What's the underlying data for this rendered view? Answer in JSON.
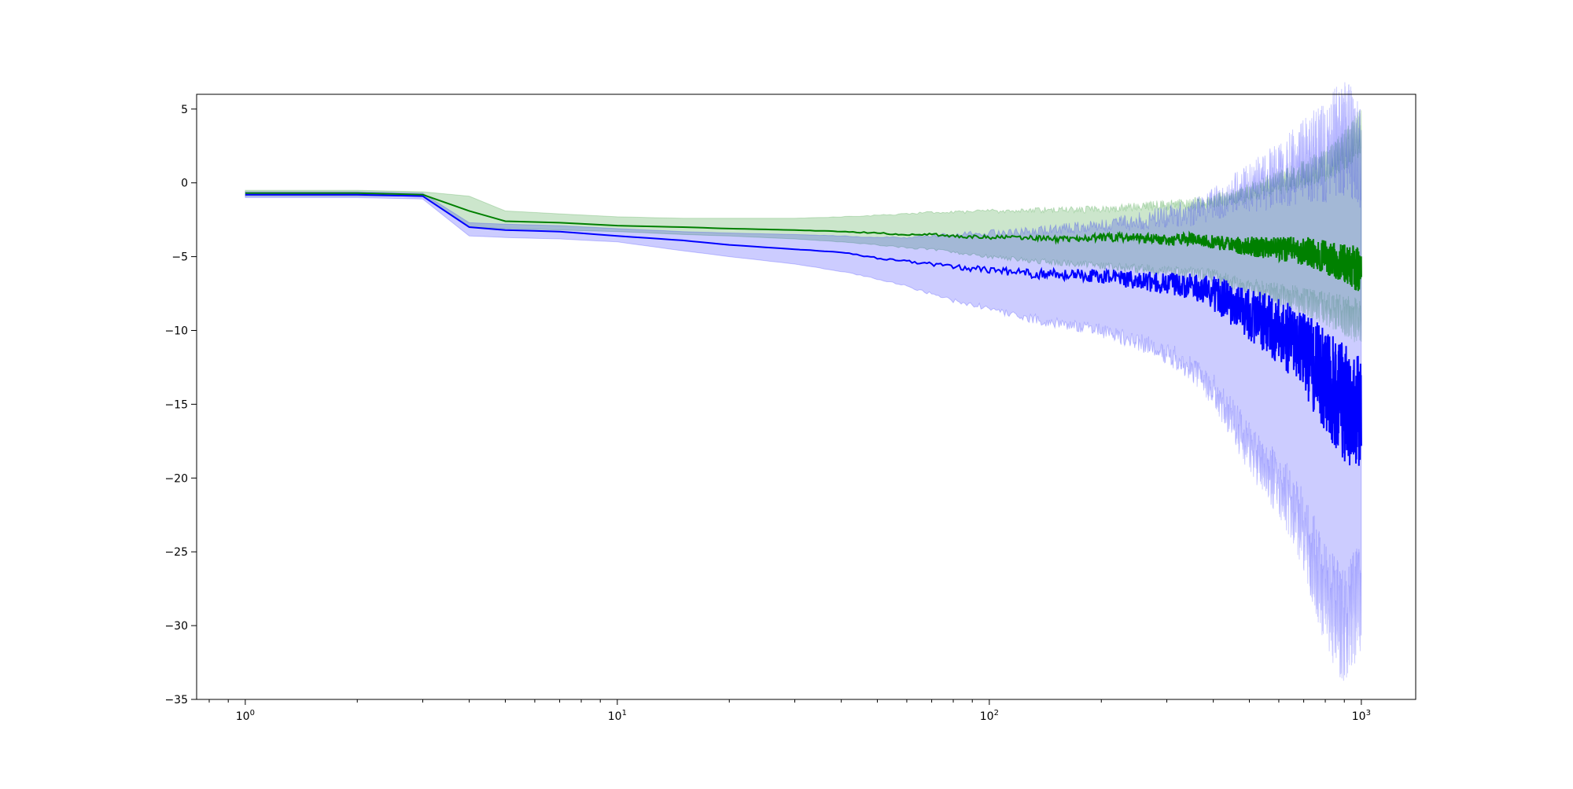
{
  "chart_data": {
    "type": "line",
    "title": "",
    "xlabel": "",
    "ylabel": "",
    "xscale": "log",
    "xlim": [
      0.74,
      1400
    ],
    "ylim": [
      -35,
      6
    ],
    "grid": false,
    "legend": "none",
    "x_major_ticks": [
      {
        "value": 1,
        "base": "10",
        "exp": "0"
      },
      {
        "value": 10,
        "base": "10",
        "exp": "1"
      },
      {
        "value": 100,
        "base": "10",
        "exp": "2"
      },
      {
        "value": 1000,
        "base": "10",
        "exp": "3"
      }
    ],
    "y_ticks": [
      {
        "value": 5,
        "label": "5"
      },
      {
        "value": 0,
        "label": "0"
      },
      {
        "value": -5,
        "label": "−5"
      },
      {
        "value": -10,
        "label": "−10"
      },
      {
        "value": -15,
        "label": "−15"
      },
      {
        "value": -20,
        "label": "−20"
      },
      {
        "value": -25,
        "label": "−25"
      },
      {
        "value": -30,
        "label": "−30"
      },
      {
        "value": -35,
        "label": "−35"
      }
    ],
    "series": [
      {
        "color": "#008000",
        "band_color": "#008000",
        "x": [
          1,
          2,
          3,
          4,
          5,
          7,
          10,
          15,
          20,
          30,
          40,
          50,
          60,
          70,
          80,
          100,
          120,
          150,
          200,
          250,
          300,
          350,
          400,
          450,
          500,
          600,
          700,
          800,
          900,
          1000
        ],
        "y": [
          -0.7,
          -0.7,
          -0.8,
          -1.9,
          -2.6,
          -2.7,
          -2.9,
          -3.0,
          -3.1,
          -3.2,
          -3.3,
          -3.4,
          -3.5,
          -3.5,
          -3.6,
          -3.7,
          -3.7,
          -3.8,
          -3.7,
          -3.7,
          -3.9,
          -3.8,
          -4.0,
          -4.2,
          -4.3,
          -4.5,
          -4.6,
          -5.0,
          -5.5,
          -6.0
        ],
        "lower": [
          -0.9,
          -0.9,
          -0.9,
          -3.0,
          -3.1,
          -3.2,
          -3.3,
          -3.5,
          -3.6,
          -3.8,
          -4.0,
          -4.2,
          -4.4,
          -4.5,
          -4.7,
          -5.0,
          -5.2,
          -5.4,
          -5.6,
          -5.8,
          -6.0,
          -6.1,
          -6.3,
          -6.8,
          -7.1,
          -7.6,
          -8.0,
          -8.5,
          -9.0,
          -9.5
        ],
        "upper": [
          -0.5,
          -0.5,
          -0.6,
          -0.9,
          -1.9,
          -2.1,
          -2.3,
          -2.4,
          -2.4,
          -2.4,
          -2.3,
          -2.2,
          -2.1,
          -2.0,
          -2.0,
          -1.9,
          -1.9,
          -1.8,
          -1.8,
          -1.6,
          -1.5,
          -1.4,
          -1.2,
          -1.0,
          -0.6,
          0.0,
          0.6,
          1.2,
          2.2,
          3.5
        ]
      },
      {
        "color": "#0000ff",
        "band_color": "#0000ff",
        "x": [
          1,
          2,
          3,
          4,
          5,
          7,
          10,
          15,
          20,
          30,
          40,
          50,
          60,
          70,
          80,
          100,
          120,
          150,
          200,
          250,
          300,
          350,
          400,
          450,
          500,
          600,
          700,
          800,
          900,
          1000
        ],
        "y": [
          -0.8,
          -0.8,
          -0.9,
          -3.0,
          -3.2,
          -3.3,
          -3.6,
          -3.9,
          -4.2,
          -4.5,
          -4.7,
          -5.1,
          -5.3,
          -5.5,
          -5.7,
          -5.9,
          -6.1,
          -6.2,
          -6.3,
          -6.6,
          -6.8,
          -7.0,
          -7.5,
          -8.2,
          -9.0,
          -10.0,
          -11.5,
          -13.5,
          -15.0,
          -15.5
        ],
        "lower": [
          -1.0,
          -1.0,
          -1.1,
          -3.6,
          -3.7,
          -3.8,
          -4.0,
          -4.6,
          -5.0,
          -5.5,
          -6.0,
          -6.5,
          -7.0,
          -7.5,
          -8.0,
          -8.5,
          -9.0,
          -9.5,
          -10.0,
          -10.8,
          -11.5,
          -12.5,
          -14.0,
          -16.0,
          -18.0,
          -20.5,
          -23.5,
          -28.0,
          -30.0,
          -28.0
        ],
        "upper": [
          -0.6,
          -0.6,
          -0.7,
          -2.7,
          -2.8,
          -2.9,
          -3.1,
          -3.3,
          -3.4,
          -3.5,
          -3.6,
          -3.7,
          -3.7,
          -3.6,
          -3.5,
          -3.4,
          -3.3,
          -3.1,
          -2.9,
          -2.6,
          -2.3,
          -2.0,
          -1.5,
          -0.8,
          -0.3,
          0.5,
          1.5,
          2.2,
          3.0,
          2.0
        ]
      }
    ]
  }
}
